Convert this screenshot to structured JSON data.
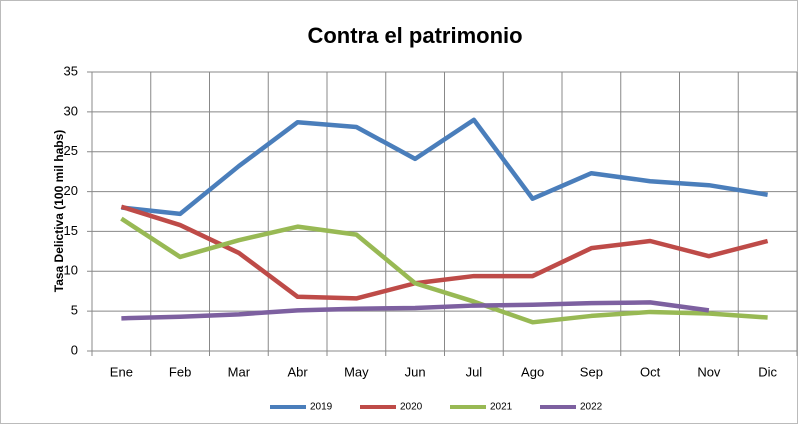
{
  "chart_data": {
    "type": "line",
    "title": "Contra el patrimonio",
    "y_label": "Tasa Delictiva (100 mil  habs)",
    "categories": [
      "Ene",
      "Feb",
      "Mar",
      "Abr",
      "May",
      "Jun",
      "Jul",
      "Ago",
      "Sep",
      "Oct",
      "Nov",
      "Dic"
    ],
    "series": [
      {
        "name": "2019",
        "color": "#4a7ebb",
        "values": [
          18,
          17.2,
          23.2,
          28.7,
          28.1,
          24.1,
          29,
          19.1,
          22.3,
          21.3,
          20.8,
          19.6
        ]
      },
      {
        "name": "2020",
        "color": "#be4b48",
        "values": [
          18.1,
          15.8,
          12.3,
          6.8,
          6.6,
          8.5,
          9.4,
          9.4,
          12.9,
          13.8,
          11.9,
          13.8
        ]
      },
      {
        "name": "2021",
        "color": "#98b954",
        "values": [
          16.6,
          11.8,
          13.9,
          15.6,
          14.6,
          8.5,
          6.2,
          3.6,
          4.4,
          4.9,
          4.7,
          4.2
        ]
      },
      {
        "name": "2022",
        "color": "#7d60a0",
        "values": [
          4.1,
          4.3,
          4.6,
          5.1,
          5.3,
          5.4,
          5.7,
          5.8,
          6.0,
          6.1,
          5.1,
          null
        ]
      }
    ],
    "ylim": [
      0,
      35
    ],
    "yticks": [
      0,
      5,
      10,
      15,
      20,
      25,
      30,
      35
    ],
    "grid": true,
    "legend": "bottom"
  }
}
